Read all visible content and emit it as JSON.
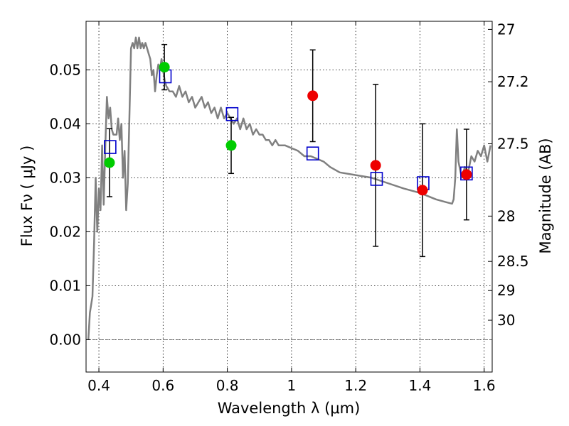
{
  "chart_data": {
    "type": "scatter",
    "title": "",
    "xlabel": "Wavelength  λ (μm)",
    "ylabel": "Flux  Fν  ( μJy )",
    "ylabel_right": "Magnitude (AB)",
    "xlim": [
      0.36,
      1.625
    ],
    "ylim": [
      -0.006,
      0.059
    ],
    "x_ticks": [
      0.4,
      0.6,
      0.8,
      1.0,
      1.2,
      1.4,
      1.6
    ],
    "x_tick_labels": [
      "0.4",
      "0.6",
      "0.8",
      "1",
      "1.2",
      "1.4",
      "1.6"
    ],
    "y_ticks": [
      0.0,
      0.01,
      0.02,
      0.03,
      0.04,
      0.05
    ],
    "y_tick_labels": [
      "0.00",
      "0.01",
      "0.02",
      "0.03",
      "0.04",
      "0.05"
    ],
    "right_ticks": [
      {
        "label": "27",
        "flux": 0.0575
      },
      {
        "label": "27.2",
        "flux": 0.0478
      },
      {
        "label": "27.5",
        "flux": 0.0363
      },
      {
        "label": "28",
        "flux": 0.0229
      },
      {
        "label": "28.5",
        "flux": 0.0145
      },
      {
        "label": "29",
        "flux": 0.0091
      },
      {
        "label": "30",
        "flux": 0.0036
      }
    ],
    "series": [
      {
        "name": "model spectrum",
        "kind": "line",
        "color": "#808080",
        "x": [
          0.367,
          0.372,
          0.38,
          0.385,
          0.39,
          0.395,
          0.4,
          0.405,
          0.41,
          0.415,
          0.42,
          0.425,
          0.43,
          0.435,
          0.44,
          0.445,
          0.45,
          0.455,
          0.46,
          0.465,
          0.47,
          0.475,
          0.48,
          0.485,
          0.49,
          0.495,
          0.5,
          0.505,
          0.51,
          0.515,
          0.52,
          0.525,
          0.53,
          0.535,
          0.54,
          0.545,
          0.55,
          0.555,
          0.56,
          0.565,
          0.57,
          0.575,
          0.58,
          0.585,
          0.59,
          0.595,
          0.6,
          0.605,
          0.61,
          0.62,
          0.63,
          0.64,
          0.65,
          0.66,
          0.67,
          0.68,
          0.69,
          0.7,
          0.71,
          0.72,
          0.73,
          0.74,
          0.75,
          0.76,
          0.77,
          0.78,
          0.79,
          0.8,
          0.81,
          0.82,
          0.83,
          0.84,
          0.85,
          0.86,
          0.87,
          0.88,
          0.89,
          0.9,
          0.91,
          0.92,
          0.93,
          0.94,
          0.95,
          0.96,
          0.97,
          0.98,
          1.0,
          1.02,
          1.04,
          1.06,
          1.08,
          1.1,
          1.12,
          1.15,
          1.2,
          1.25,
          1.3,
          1.35,
          1.4,
          1.45,
          1.48,
          1.5,
          1.505,
          1.51,
          1.515,
          1.52,
          1.53,
          1.54,
          1.55,
          1.56,
          1.57,
          1.58,
          1.59,
          1.6,
          1.61,
          1.62
        ],
        "values": [
          0.0,
          0.005,
          0.008,
          0.018,
          0.03,
          0.02,
          0.028,
          0.024,
          0.036,
          0.025,
          0.036,
          0.045,
          0.041,
          0.043,
          0.039,
          0.038,
          0.038,
          0.038,
          0.041,
          0.037,
          0.04,
          0.03,
          0.035,
          0.024,
          0.029,
          0.041,
          0.054,
          0.055,
          0.054,
          0.056,
          0.054,
          0.056,
          0.054,
          0.055,
          0.054,
          0.055,
          0.054,
          0.053,
          0.052,
          0.049,
          0.05,
          0.046,
          0.049,
          0.051,
          0.05,
          0.052,
          0.05,
          0.048,
          0.047,
          0.046,
          0.046,
          0.045,
          0.047,
          0.045,
          0.046,
          0.044,
          0.045,
          0.043,
          0.044,
          0.045,
          0.043,
          0.044,
          0.042,
          0.043,
          0.041,
          0.043,
          0.041,
          0.042,
          0.041,
          0.04,
          0.041,
          0.039,
          0.041,
          0.039,
          0.04,
          0.038,
          0.039,
          0.038,
          0.038,
          0.037,
          0.037,
          0.036,
          0.037,
          0.036,
          0.036,
          0.036,
          0.0355,
          0.035,
          0.034,
          0.034,
          0.0335,
          0.033,
          0.032,
          0.031,
          0.0305,
          0.03,
          0.029,
          0.028,
          0.0272,
          0.026,
          0.0255,
          0.0252,
          0.026,
          0.03,
          0.039,
          0.033,
          0.03,
          0.032,
          0.031,
          0.034,
          0.033,
          0.035,
          0.034,
          0.036,
          0.033,
          0.036
        ]
      },
      {
        "name": "model photometry",
        "kind": "open-square",
        "color": "#0000cc",
        "x": [
          0.435,
          0.607,
          0.815,
          1.066,
          1.265,
          1.41,
          1.545
        ],
        "values": [
          0.0357,
          0.0488,
          0.0418,
          0.0345,
          0.0298,
          0.029,
          0.0308
        ]
      },
      {
        "name": "observed flux (green)",
        "kind": "errorbar",
        "color": "#00cc00",
        "x": [
          0.433,
          0.604,
          0.812
        ],
        "values": [
          0.0328,
          0.0505,
          0.036
        ],
        "err_low": [
          0.0063,
          0.0042,
          0.0052
        ],
        "err_high": [
          0.0063,
          0.0042,
          0.0052
        ]
      },
      {
        "name": "observed flux (red)",
        "kind": "errorbar",
        "color": "#ee0000",
        "x": [
          1.066,
          1.262,
          1.408,
          1.545
        ],
        "values": [
          0.0452,
          0.0323,
          0.0277,
          0.0306
        ],
        "err_low": [
          0.0085,
          0.015,
          0.0123,
          0.0084
        ],
        "err_high": [
          0.0085,
          0.015,
          0.0123,
          0.0084
        ]
      }
    ],
    "grid": true,
    "baseline_y": 0.0
  }
}
